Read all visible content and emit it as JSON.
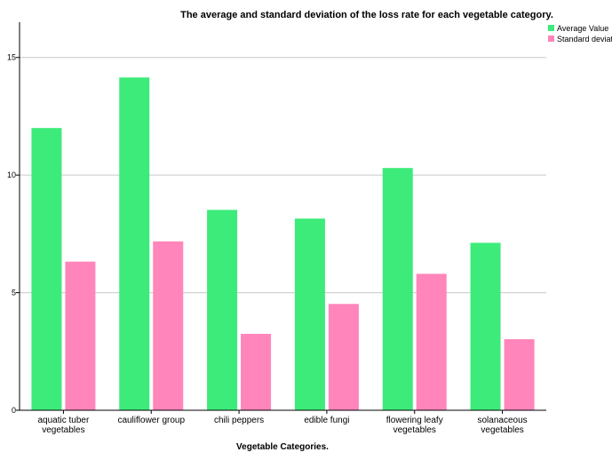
{
  "chart_data": {
    "type": "bar",
    "title": "The average and standard deviation of the loss rate for each vegetable category.",
    "xlabel": "Vegetable Categories.",
    "ylabel": "",
    "ylim": [
      0,
      16.5
    ],
    "yticks": [
      0,
      5,
      10,
      15
    ],
    "grid": true,
    "legend_position": "top-right",
    "categories": [
      [
        "aquatic tuber",
        "vegetables"
      ],
      [
        "cauliflower group"
      ],
      [
        "chili peppers"
      ],
      [
        "edible fungi"
      ],
      [
        "flowering leafy",
        "vegetables"
      ],
      [
        "solanaceous",
        "vegetables"
      ]
    ],
    "series": [
      {
        "name": "Average Value",
        "color": "#3deb7a",
        "values": [
          12.0,
          14.15,
          8.52,
          8.15,
          10.3,
          7.12
        ]
      },
      {
        "name": "Standard deviation",
        "color": "#ff85ba",
        "values": [
          6.32,
          7.18,
          3.25,
          4.52,
          5.8,
          3.02
        ]
      }
    ]
  }
}
